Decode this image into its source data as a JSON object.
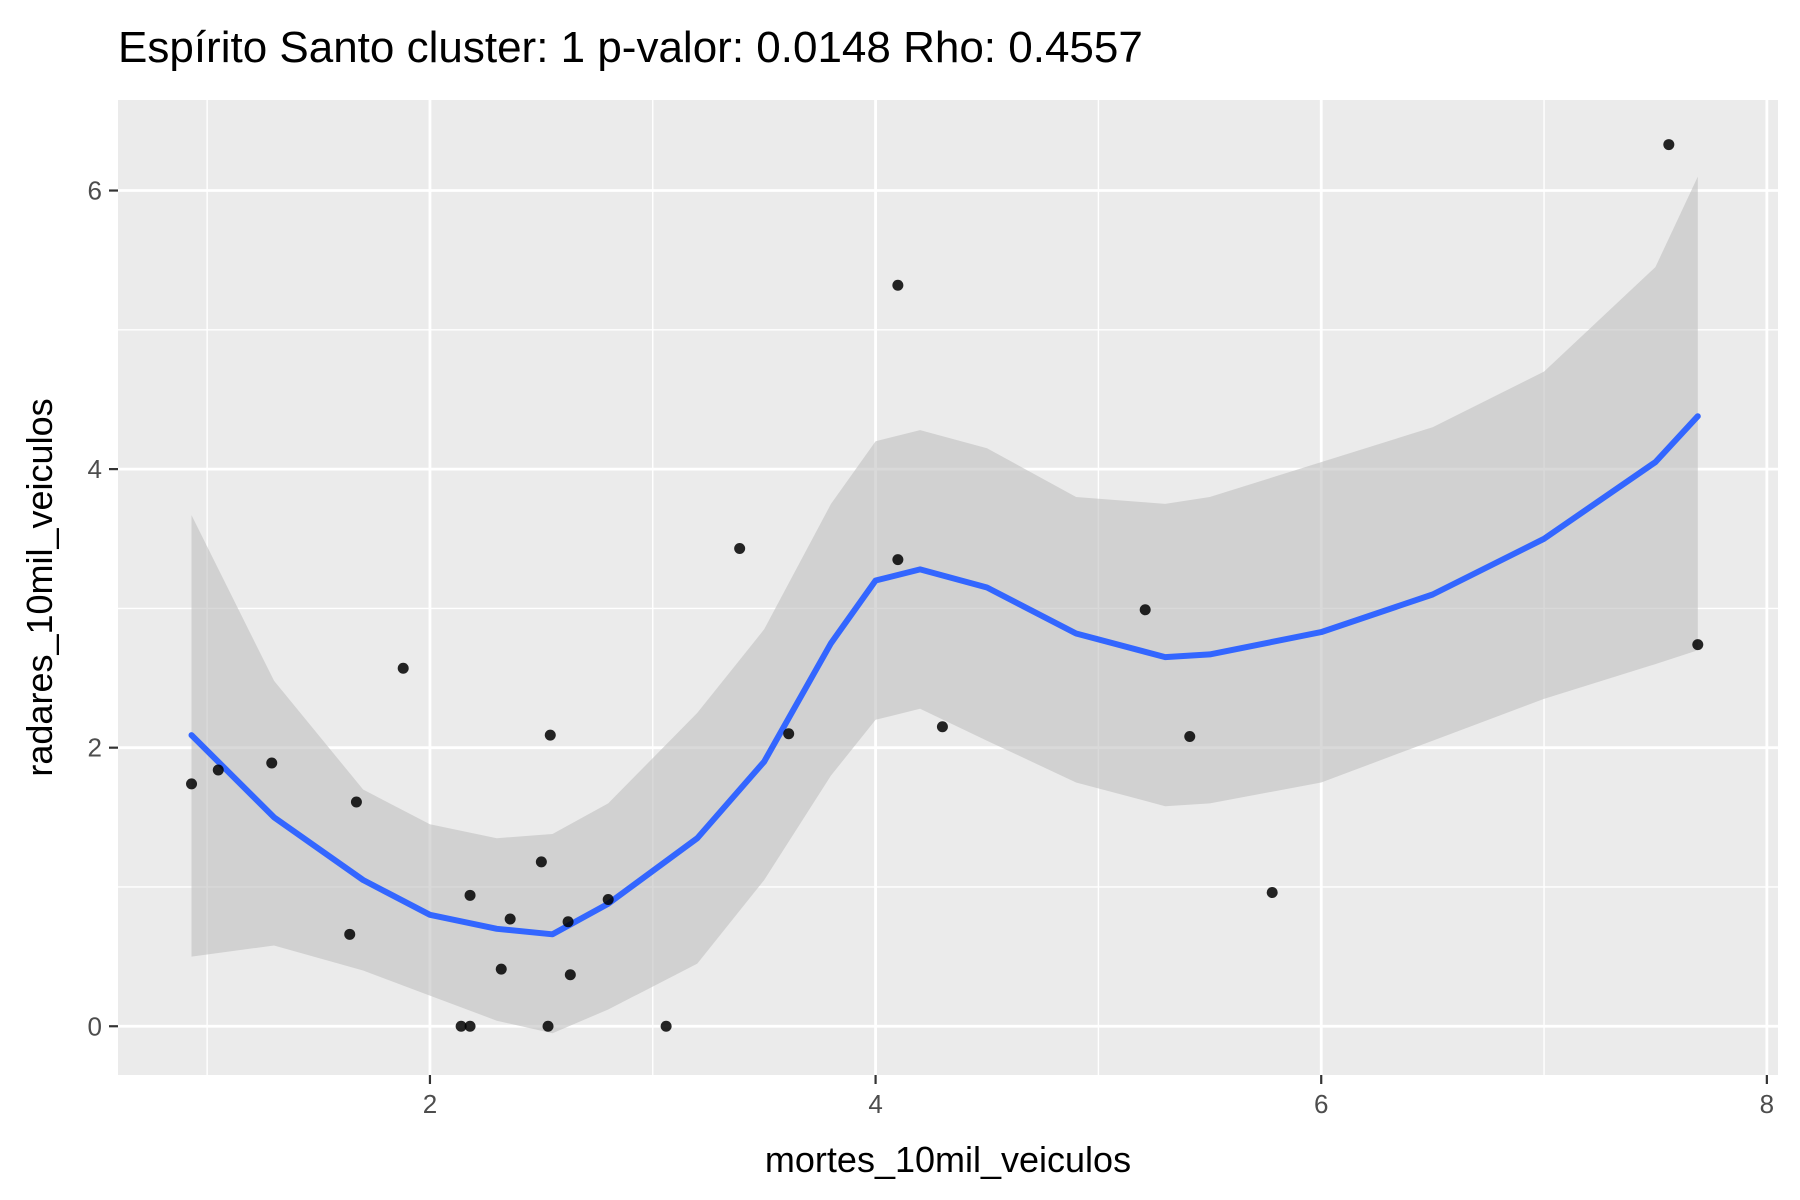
{
  "chart_data": {
    "type": "scatter",
    "title": "Espírito Santo cluster: 1 p-valor: 0.0148 Rho: 0.4557",
    "xlabel": "mortes_10mil_veiculos",
    "ylabel": "radares_10mil_veiculos",
    "xlim": [
      0.6,
      8.05
    ],
    "ylim": [
      -0.35,
      6.65
    ],
    "x_ticks": [
      2,
      4,
      6,
      8
    ],
    "y_ticks": [
      0,
      2,
      4,
      6
    ],
    "grid": true,
    "legend": "none",
    "colors": {
      "panel": "#ebebeb",
      "grid": "#ffffff",
      "point": "#000000",
      "smooth_line": "#3366ff",
      "ribbon": "#c0c0c0"
    },
    "points": [
      {
        "x": 0.93,
        "y": 1.74
      },
      {
        "x": 1.05,
        "y": 1.84
      },
      {
        "x": 1.29,
        "y": 1.89
      },
      {
        "x": 1.64,
        "y": 0.66
      },
      {
        "x": 1.67,
        "y": 1.61
      },
      {
        "x": 1.88,
        "y": 2.57
      },
      {
        "x": 2.14,
        "y": 0.0
      },
      {
        "x": 2.18,
        "y": 0.0
      },
      {
        "x": 2.18,
        "y": 0.94
      },
      {
        "x": 2.32,
        "y": 0.41
      },
      {
        "x": 2.36,
        "y": 0.77
      },
      {
        "x": 2.5,
        "y": 1.18
      },
      {
        "x": 2.53,
        "y": 0.0
      },
      {
        "x": 2.54,
        "y": 2.09
      },
      {
        "x": 2.62,
        "y": 0.75
      },
      {
        "x": 2.63,
        "y": 0.37
      },
      {
        "x": 2.8,
        "y": 0.91
      },
      {
        "x": 3.06,
        "y": 0.0
      },
      {
        "x": 3.39,
        "y": 3.43
      },
      {
        "x": 3.61,
        "y": 2.1
      },
      {
        "x": 4.1,
        "y": 5.32
      },
      {
        "x": 4.1,
        "y": 3.35
      },
      {
        "x": 4.3,
        "y": 2.15
      },
      {
        "x": 5.21,
        "y": 2.99
      },
      {
        "x": 5.41,
        "y": 2.08
      },
      {
        "x": 5.78,
        "y": 0.96
      },
      {
        "x": 7.56,
        "y": 6.33
      },
      {
        "x": 7.69,
        "y": 2.74
      }
    ],
    "smooth": {
      "method": "loess",
      "x": [
        0.93,
        1.3,
        1.7,
        2.0,
        2.3,
        2.55,
        2.8,
        3.2,
        3.5,
        3.8,
        4.0,
        4.2,
        4.5,
        4.9,
        5.3,
        5.5,
        6.0,
        6.5,
        7.0,
        7.5,
        7.69
      ],
      "y": [
        2.09,
        1.5,
        1.05,
        0.8,
        0.7,
        0.66,
        0.88,
        1.35,
        1.9,
        2.75,
        3.2,
        3.28,
        3.15,
        2.82,
        2.65,
        2.67,
        2.83,
        3.1,
        3.5,
        4.05,
        4.38
      ],
      "lower": [
        0.5,
        0.58,
        0.4,
        0.22,
        0.04,
        -0.05,
        0.12,
        0.45,
        1.05,
        1.8,
        2.2,
        2.28,
        2.05,
        1.75,
        1.58,
        1.6,
        1.75,
        2.05,
        2.35,
        2.6,
        2.7
      ],
      "upper": [
        3.67,
        2.48,
        1.7,
        1.45,
        1.35,
        1.38,
        1.6,
        2.25,
        2.85,
        3.75,
        4.2,
        4.28,
        4.15,
        3.8,
        3.75,
        3.8,
        4.05,
        4.3,
        4.7,
        5.45,
        6.1
      ]
    }
  }
}
